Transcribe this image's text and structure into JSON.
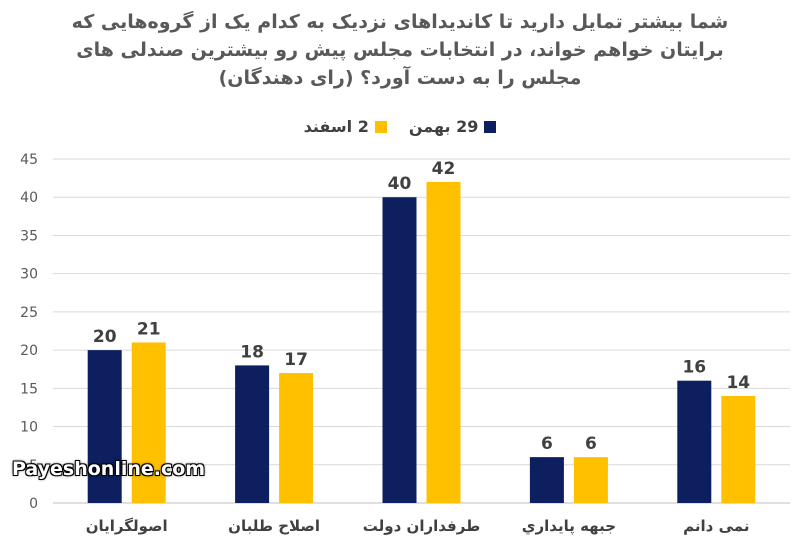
{
  "chart_data": {
    "type": "bar",
    "title": "شما بیشتر تمایل دارید تا کاندیداهای نزدیک به کدام یک از گروه‌هایی که\nبرایتان خواهم خواند، در انتخابات مجلس پیش رو بیشترین صندلی های\nمجلس را به دست آورد؟ (رای دهندگان)",
    "categories": [
      "اصولگرایان",
      "اصلاح طلبان",
      "طرفداران دولت",
      "جبهه پایداري",
      "نمی دانم"
    ],
    "series": [
      {
        "name": "29 بهمن",
        "values": [
          20,
          18,
          40,
          6,
          16
        ],
        "color": "#0d1f5e"
      },
      {
        "name": "2 اسفند",
        "values": [
          21,
          17,
          42,
          6,
          14
        ],
        "color": "#ffc000"
      }
    ],
    "ylim": [
      0,
      45
    ],
    "yticks": [
      0,
      5,
      10,
      15,
      20,
      25,
      30,
      35,
      40,
      45
    ],
    "grid": true,
    "legend_position": "top-center",
    "xlabel": "",
    "ylabel": ""
  },
  "watermark": "Payeshonline.com"
}
